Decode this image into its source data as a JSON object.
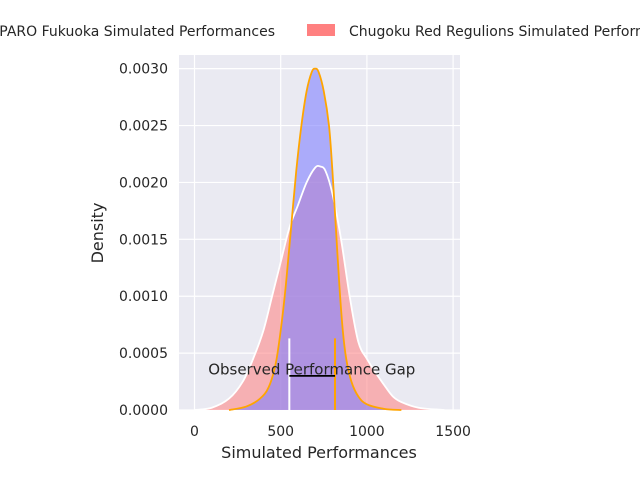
{
  "chart_data": {
    "type": "area",
    "title": "",
    "xlabel": "Simulated Performances",
    "ylabel": "Density",
    "xlim": [
      -90,
      1540
    ],
    "ylim": [
      0,
      0.00312
    ],
    "xticks": [
      0,
      500,
      1000,
      1500
    ],
    "xtick_labels": [
      "0",
      "500",
      "1000",
      "1500"
    ],
    "yticks": [
      0,
      0.0005,
      0.001,
      0.0015,
      0.002,
      0.0025,
      0.003
    ],
    "ytick_labels": [
      "0.0000",
      "0.0005",
      "0.0010",
      "0.0015",
      "0.0020",
      "0.0025",
      "0.0030"
    ],
    "grid": true,
    "legend_placement": "top-center, outside plot",
    "colors": {
      "background": "#EAEAF2",
      "grid": "#FFFFFF",
      "fukuoka_fill": "#8080FF",
      "regulions_fill": "#FF8080",
      "fukuoka_line": "#FFA500",
      "regulions_line": "#FFFFFF",
      "gap_line": "#000000"
    },
    "series": [
      {
        "name": "AVISPARO Fukuoka Simulated Performances",
        "mean_line": 815,
        "points": [
          [
            200,
            0
          ],
          [
            300,
            3e-05
          ],
          [
            380,
            0.0001
          ],
          [
            430,
            0.0002
          ],
          [
            470,
            0.0004
          ],
          [
            500,
            0.0007
          ],
          [
            530,
            0.0011
          ],
          [
            560,
            0.0016
          ],
          [
            590,
            0.0021
          ],
          [
            620,
            0.0025
          ],
          [
            650,
            0.0028
          ],
          [
            680,
            0.00297
          ],
          [
            700,
            0.003
          ],
          [
            720,
            0.00297
          ],
          [
            750,
            0.0028
          ],
          [
            780,
            0.0025
          ],
          [
            800,
            0.0021
          ],
          [
            820,
            0.0016
          ],
          [
            840,
            0.0011
          ],
          [
            860,
            0.0007
          ],
          [
            880,
            0.00045
          ],
          [
            910,
            0.00025
          ],
          [
            950,
            0.00012
          ],
          [
            1000,
            5e-05
          ],
          [
            1100,
            1e-05
          ],
          [
            1200,
            0
          ]
        ]
      },
      {
        "name": "Chugoku Red Regulions Simulated Performances",
        "mean_line": 550,
        "points": [
          [
            0,
            0
          ],
          [
            100,
            2e-05
          ],
          [
            200,
            0.0001
          ],
          [
            280,
            0.00025
          ],
          [
            340,
            0.00045
          ],
          [
            400,
            0.0007
          ],
          [
            450,
            0.001
          ],
          [
            500,
            0.0013
          ],
          [
            550,
            0.0016
          ],
          [
            600,
            0.0018
          ],
          [
            650,
            0.002
          ],
          [
            700,
            0.00213
          ],
          [
            730,
            0.00214
          ],
          [
            760,
            0.0021
          ],
          [
            800,
            0.0019
          ],
          [
            850,
            0.0015
          ],
          [
            900,
            0.001
          ],
          [
            950,
            0.0006
          ],
          [
            1000,
            0.00045
          ],
          [
            1050,
            0.00033
          ],
          [
            1100,
            0.00022
          ],
          [
            1150,
            0.00012
          ],
          [
            1200,
            7e-05
          ],
          [
            1300,
            2e-05
          ],
          [
            1450,
            0
          ]
        ]
      }
    ],
    "annotation": {
      "text": "Observed Performance Gap",
      "x_start": 550,
      "x_end": 815,
      "y": 0.0003,
      "label_x": 680,
      "label_y": 0.00031
    },
    "mean_line_height": 0.00063
  }
}
